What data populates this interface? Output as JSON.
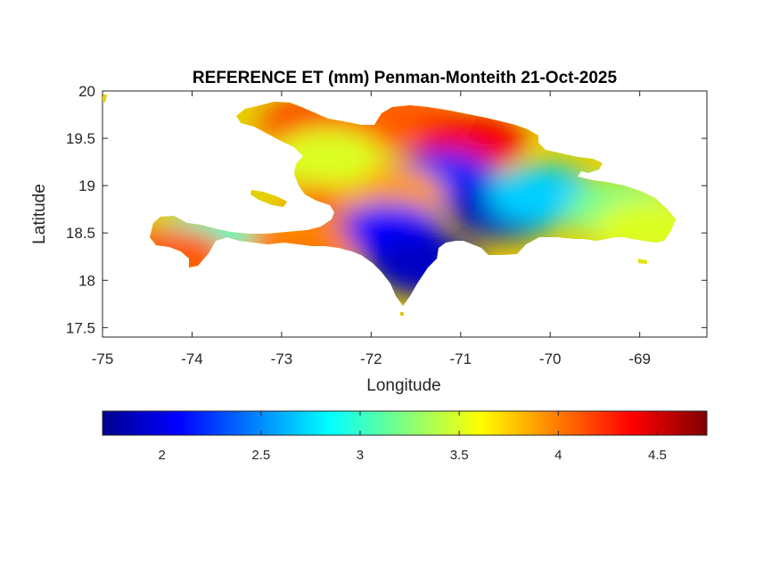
{
  "chart_data": {
    "type": "heatmap",
    "title": "REFERENCE ET (mm) Penman-Monteith 21-Oct-2025",
    "xlabel": "Longitude",
    "ylabel": "Latitude",
    "xlim": [
      -75,
      -68.25
    ],
    "ylim": [
      17.4,
      20
    ],
    "x_ticks": [
      "-75",
      "-74",
      "-73",
      "-72",
      "-71",
      "-70",
      "-69"
    ],
    "y_ticks": [
      "20",
      "19.5",
      "19",
      "18.5",
      "18",
      "17.5"
    ],
    "colorbar": {
      "colormap": "jet",
      "clim": [
        1.7,
        4.75
      ],
      "ticks": [
        "2",
        "2.5",
        "3",
        "3.5",
        "4",
        "4.5"
      ]
    },
    "regions": [
      {
        "name": "",
        "lon": -72.6,
        "lat": 19.6,
        "value": 4.3
      },
      {
        "name": "",
        "lon": -71.6,
        "lat": 19.7,
        "value": 4.1
      },
      {
        "name": "",
        "lon": -70.9,
        "lat": 19.45,
        "value": 4.4
      },
      {
        "name": "",
        "lon": -71.2,
        "lat": 19.05,
        "value": 2.2
      },
      {
        "name": "",
        "lon": -70.5,
        "lat": 18.75,
        "value": 1.9
      },
      {
        "name": "",
        "lon": -70.1,
        "lat": 18.9,
        "value": 2.7
      },
      {
        "name": "",
        "lon": -69.2,
        "lat": 18.75,
        "value": 3.2
      },
      {
        "name": "",
        "lon": -68.9,
        "lat": 18.55,
        "value": 3.5
      },
      {
        "name": "",
        "lon": -72.3,
        "lat": 19.0,
        "value": 4.2
      },
      {
        "name": "",
        "lon": -71.8,
        "lat": 18.9,
        "value": 3.9
      },
      {
        "name": "",
        "lon": -71.8,
        "lat": 18.5,
        "value": 2.1
      },
      {
        "name": "",
        "lon": -71.4,
        "lat": 18.15,
        "value": 1.9
      },
      {
        "name": "",
        "lon": -73.8,
        "lat": 18.45,
        "value": 3.0
      },
      {
        "name": "",
        "lon": -72.8,
        "lat": 18.35,
        "value": 4.0
      },
      {
        "name": "",
        "lon": -74.2,
        "lat": 18.25,
        "value": 4.1
      },
      {
        "name": "",
        "lon": -72.5,
        "lat": 19.3,
        "value": 3.5
      }
    ]
  }
}
